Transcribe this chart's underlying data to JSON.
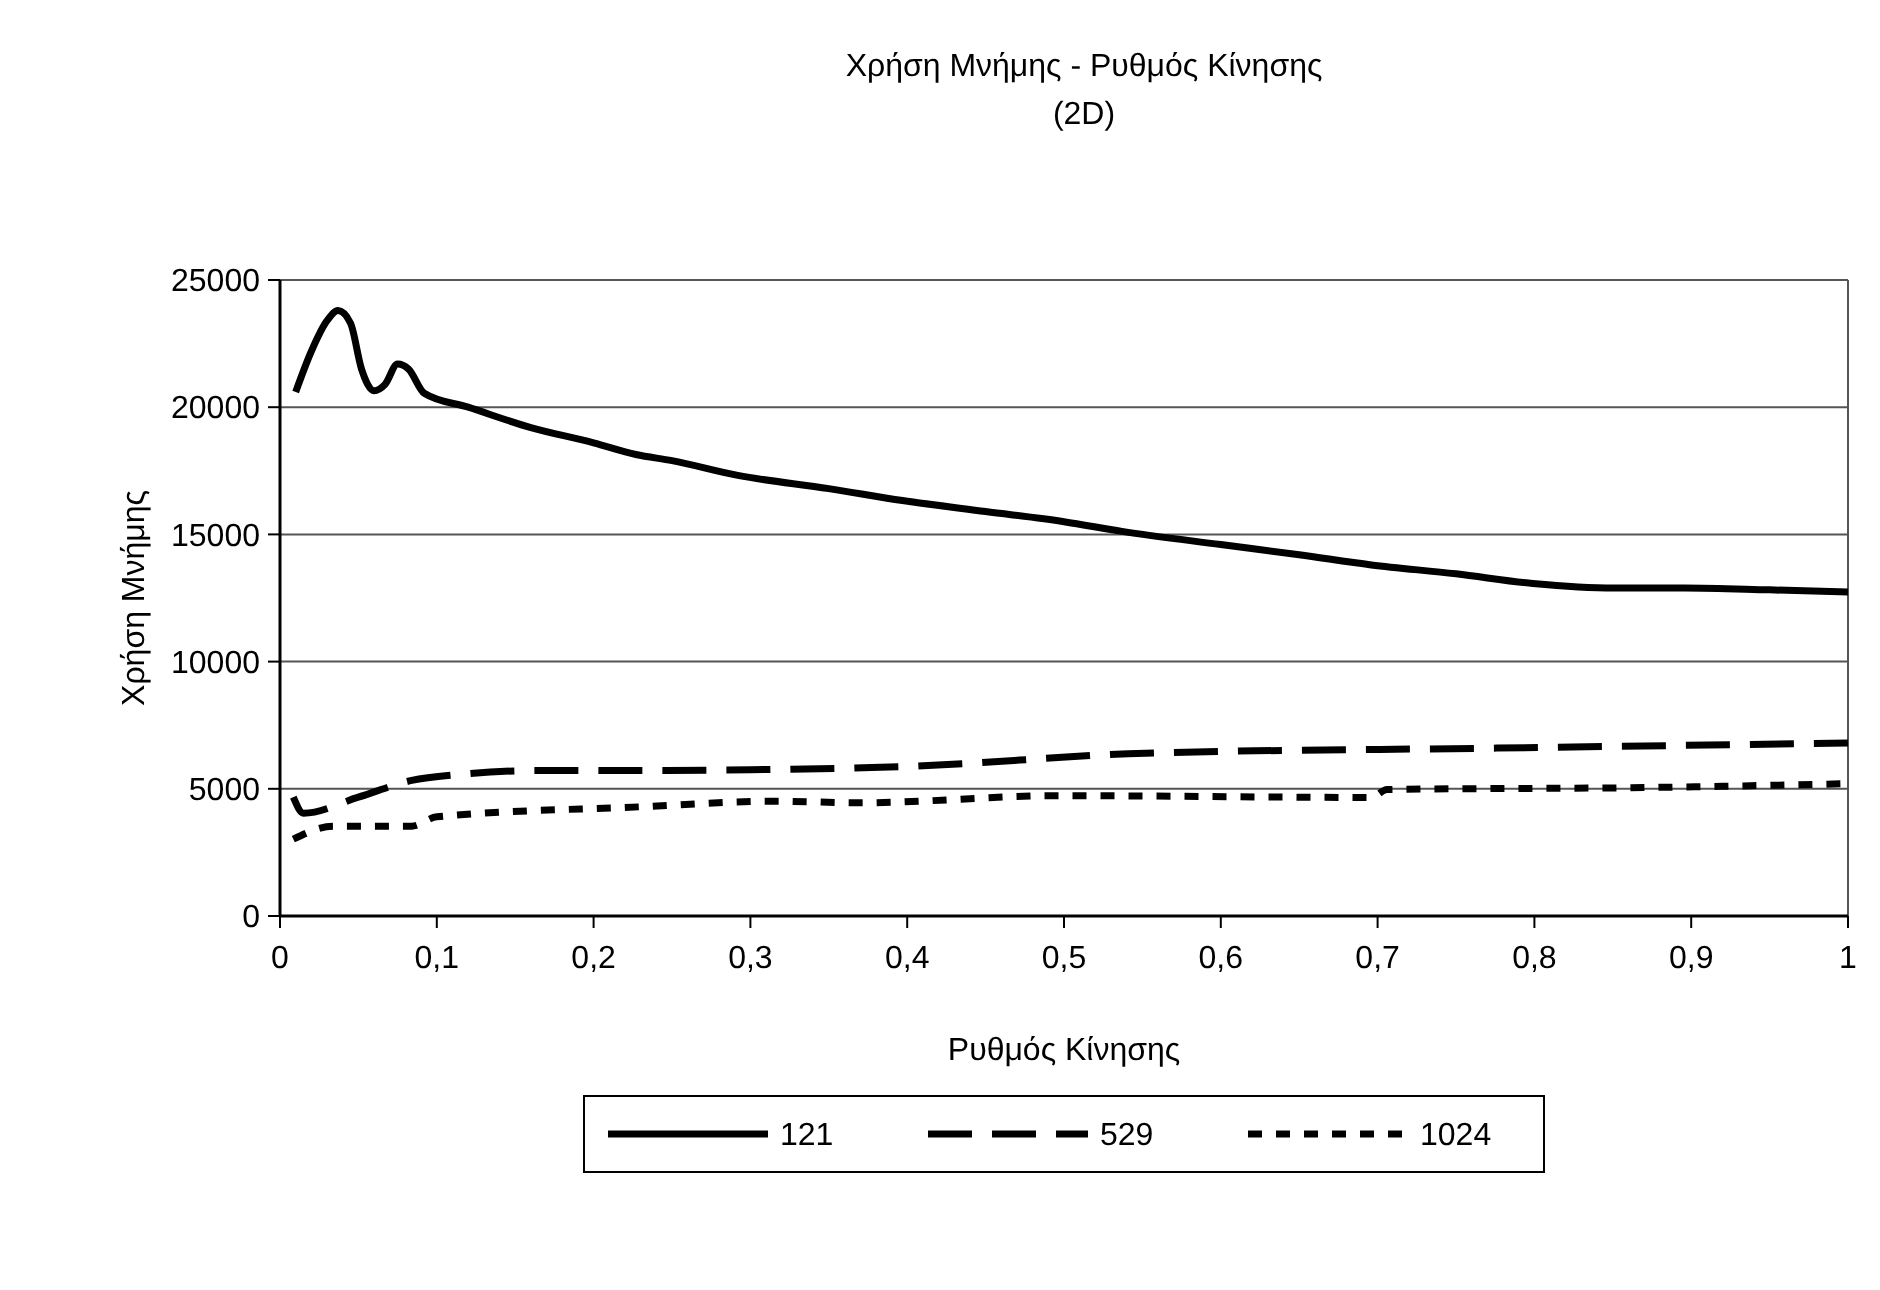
{
  "chart_data": {
    "type": "line",
    "title": "Χρήση Μνήμης - Ρυθμός Κίνησης",
    "subtitle": "(2D)",
    "xlabel": "Ρυθμός Κίνησης",
    "ylabel": "Χρήση Μνήμης",
    "xlim": [
      0,
      1
    ],
    "xticks": [
      0,
      {
        "value": 0.1,
        "label": "0,1"
      },
      {
        "value": 0.2,
        "label": "0,2"
      },
      {
        "value": 0.3,
        "label": "0,3"
      },
      {
        "value": 0.4,
        "label": "0,4"
      },
      {
        "value": 0.5,
        "label": "0,5"
      },
      {
        "value": 0.6,
        "label": "0,6"
      },
      {
        "value": 0.7,
        "label": "0,7"
      },
      {
        "value": 0.8,
        "label": "0,8"
      },
      {
        "value": 0.9,
        "label": "0,9"
      },
      1
    ],
    "ylim": [
      0,
      25000
    ],
    "yticks": [
      0,
      5000,
      10000,
      15000,
      20000,
      25000
    ],
    "grid": "y",
    "legend": "bottom",
    "marker": "none",
    "series": [
      {
        "name": "121",
        "color": "#000000",
        "line_style": "solid",
        "x": [
          0.01,
          0.02,
          0.03,
          0.037,
          0.045,
          0.052,
          0.06,
          0.067,
          0.075,
          0.082,
          0.092,
          0.12,
          0.16,
          0.2,
          0.227,
          0.25,
          0.292,
          0.35,
          0.397,
          0.45,
          0.5,
          0.537,
          0.6,
          0.65,
          0.696,
          0.75,
          0.799,
          0.851,
          0.896,
          0.95,
          1.0
        ],
        "values": [
          20600,
          22200,
          23400,
          23800,
          23300,
          21500,
          20650,
          20900,
          21700,
          21500,
          20550,
          20000,
          19200,
          18600,
          18140,
          17900,
          17320,
          16800,
          16330,
          15900,
          15500,
          15120,
          14600,
          14200,
          13800,
          13450,
          13070,
          12890,
          12890,
          12820,
          12740
        ]
      },
      {
        "name": "529",
        "color": "#000000",
        "line_style": "dashed",
        "x": [
          0.0085,
          0.015,
          0.05,
          0.084,
          0.114,
          0.168,
          0.229,
          0.3,
          0.397,
          0.552,
          0.776,
          1.0
        ],
        "values": [
          4670,
          4040,
          4670,
          5330,
          5560,
          5720,
          5720,
          5750,
          5870,
          6400,
          6600,
          6800
        ]
      },
      {
        "name": "1024",
        "color": "#000000",
        "line_style": "dotted",
        "x": [
          0.0085,
          0.034,
          0.084,
          0.1,
          0.229,
          0.317,
          0.37,
          0.496,
          0.696,
          0.706,
          0.871,
          1.0
        ],
        "values": [
          3020,
          3530,
          3530,
          3900,
          4290,
          4510,
          4450,
          4730,
          4660,
          4970,
          5050,
          5200
        ]
      }
    ]
  }
}
